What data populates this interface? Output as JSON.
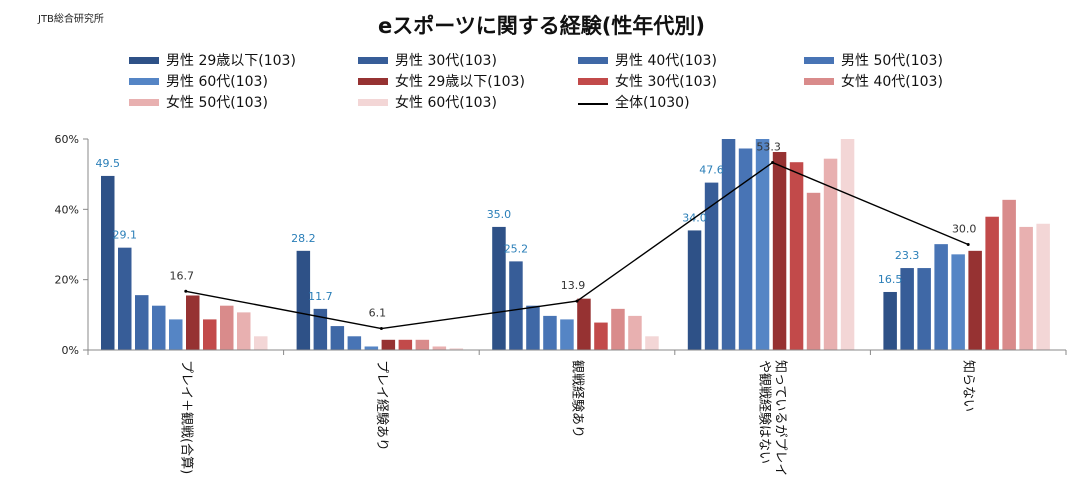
{
  "source": "JTB総合研究所",
  "chart_data": {
    "type": "bar",
    "title": "eスポーツに関する経験(性年代別)",
    "xlabel": "",
    "ylabel": "",
    "ylim": [
      0,
      60
    ],
    "yticks": [
      0,
      20,
      40,
      60
    ],
    "ytick_labels": [
      "0%",
      "20%",
      "40%",
      "60%"
    ],
    "grid": false,
    "legend_position": "top",
    "categories": [
      "プレイ＋観戦(合算)",
      "プレイ経験あり",
      "観戦経験あり",
      "知っているがプレイや観戦経験はない",
      "知らない"
    ],
    "series": [
      {
        "name": "男性 29歳以下(103)",
        "color": "#2e5187",
        "values": [
          49.5,
          28.2,
          35.0,
          34.0,
          16.5
        ],
        "labeled": true
      },
      {
        "name": "男性 30代(103)",
        "color": "#375d98",
        "values": [
          29.1,
          11.7,
          25.2,
          47.6,
          23.3
        ],
        "labeled": true
      },
      {
        "name": "男性 40代(103)",
        "color": "#3f68a6",
        "values": [
          15.6,
          6.8,
          12.6,
          60.0,
          23.3
        ],
        "labeled": false
      },
      {
        "name": "男性 50代(103)",
        "color": "#4874b5",
        "values": [
          12.6,
          3.9,
          9.7,
          57.3,
          30.1
        ],
        "labeled": false
      },
      {
        "name": "男性 60代(103)",
        "color": "#5585c5",
        "values": [
          8.7,
          1.0,
          8.7,
          60.0,
          27.2
        ],
        "labeled": false
      },
      {
        "name": "女性 29歳以下(103)",
        "color": "#963232",
        "values": [
          15.5,
          2.9,
          14.6,
          56.3,
          28.2
        ],
        "labeled": false
      },
      {
        "name": "女性 30代(103)",
        "color": "#c24a4a",
        "values": [
          8.7,
          2.9,
          7.8,
          53.4,
          37.9
        ],
        "labeled": false
      },
      {
        "name": "女性 40代(103)",
        "color": "#d98b8b",
        "values": [
          12.6,
          2.9,
          11.7,
          44.7,
          42.7
        ],
        "labeled": false
      },
      {
        "name": "女性 50代(103)",
        "color": "#e8b0b0",
        "values": [
          10.7,
          1.0,
          9.7,
          54.4,
          35.0
        ],
        "labeled": false
      },
      {
        "name": "女性 60代(103)",
        "color": "#f3d6d6",
        "values": [
          3.9,
          0.5,
          3.9,
          60.0,
          35.9
        ],
        "labeled": false
      }
    ],
    "total": {
      "name": "全体(1030)",
      "values": [
        16.7,
        6.1,
        13.9,
        53.3,
        30.0
      ]
    }
  }
}
